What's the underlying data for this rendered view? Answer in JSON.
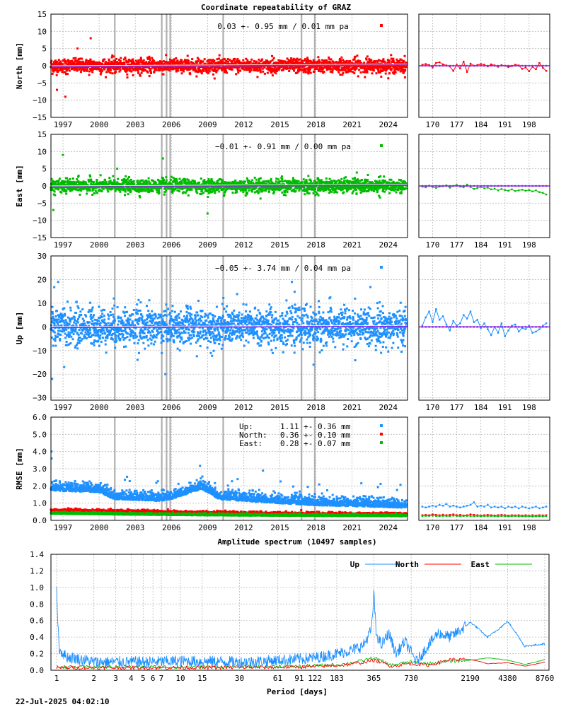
{
  "title": "Coordinate repeatability of GRAZ",
  "spectrum_title": "Amplitude spectrum (10497 samples)",
  "timestamp": "22-Jul-2025 04:02:10",
  "colors": {
    "north": "#ff0000",
    "east": "#00bb00",
    "up": "#1e90ff",
    "trend": "#8a2be2"
  },
  "chart_data": [
    {
      "type": "scatter",
      "name": "north-timeseries",
      "ylabel": "North [mm]",
      "ylim": [
        -15,
        15
      ],
      "yticks": [
        "15",
        "10",
        "5",
        "0",
        "−5",
        "−10",
        "−15"
      ],
      "ytick_values": [
        15,
        10,
        5,
        0,
        -5,
        -10,
        -15
      ],
      "xlim": [
        1996.0,
        2025.6
      ],
      "xticks": [
        "1997",
        "2000",
        "2003",
        "2006",
        "2009",
        "2012",
        "2015",
        "2018",
        "2021",
        "2024"
      ],
      "xtick_values": [
        1997,
        2000,
        2003,
        2006,
        2009,
        2012,
        2015,
        2018,
        2021,
        2024
      ],
      "annotation": "0.03 +- 0.95 mm /  0.01 mm pa",
      "noise_sd": 1.0,
      "series_color": "north",
      "outliers": [
        [
          1999.3,
          8
        ],
        [
          1996.5,
          -7
        ],
        [
          1997.2,
          -9
        ],
        [
          1998.2,
          5
        ]
      ],
      "equipment_changes": [
        2001.3,
        2005.2,
        2005.6,
        2005.9,
        2010.3,
        2016.8,
        2017.9
      ],
      "recent": {
        "xticks": [
          "170",
          "177",
          "184",
          "191",
          "198"
        ],
        "xtick_values": [
          170,
          177,
          184,
          191,
          198
        ],
        "xlim": [
          166,
          204
        ],
        "values": [
          0.3,
          0.5,
          0.2,
          -0.5,
          0.8,
          1.0,
          0.4,
          0.1,
          -0.2,
          -1.5,
          0.3,
          -0.8,
          1.2,
          -1.8,
          0.6,
          0.0,
          0.2,
          0.5,
          0.3,
          -0.2,
          0.4,
          0.1,
          -0.3,
          0.2,
          0.0,
          -0.4,
          -0.1,
          0.3,
          0.1,
          -0.9,
          -0.5,
          -1.6,
          -0.3,
          -1.0,
          0.8,
          -0.6,
          -1.5
        ]
      }
    },
    {
      "type": "scatter",
      "name": "east-timeseries",
      "ylabel": "East [mm]",
      "ylim": [
        -15,
        15
      ],
      "yticks": [
        "15",
        "10",
        "5",
        "0",
        "−5",
        "−10",
        "−15"
      ],
      "ytick_values": [
        15,
        10,
        5,
        0,
        -5,
        -10,
        -15
      ],
      "xlim": [
        1996.0,
        2025.6
      ],
      "xticks": [
        "1997",
        "2000",
        "2003",
        "2006",
        "2009",
        "2012",
        "2015",
        "2018",
        "2021",
        "2024"
      ],
      "xtick_values": [
        1997,
        2000,
        2003,
        2006,
        2009,
        2012,
        2015,
        2018,
        2021,
        2024
      ],
      "annotation": "−0.01 +- 0.91 mm /  0.00 mm pa",
      "noise_sd": 0.95,
      "series_color": "east",
      "outliers": [
        [
          1997.0,
          9
        ],
        [
          2005.3,
          8
        ],
        [
          2009.0,
          -8
        ],
        [
          1996.2,
          -7
        ],
        [
          2001.5,
          5
        ]
      ],
      "equipment_changes": [
        2001.3,
        2005.2,
        2005.6,
        2005.9,
        2010.3,
        2016.8,
        2017.9
      ],
      "recent": {
        "xticks": [
          "170",
          "177",
          "184",
          "191",
          "198"
        ],
        "xtick_values": [
          170,
          177,
          184,
          191,
          198
        ],
        "xlim": [
          166,
          204
        ],
        "values": [
          -0.2,
          -0.4,
          0.1,
          -0.3,
          -0.6,
          -0.2,
          -0.1,
          0.2,
          -0.5,
          0.0,
          0.3,
          -0.2,
          -0.4,
          0.4,
          -0.3,
          -0.9,
          -0.6,
          -0.3,
          -0.7,
          -0.5,
          -1.0,
          -0.8,
          -1.3,
          -0.9,
          -1.2,
          -1.4,
          -1.0,
          -1.5,
          -1.3,
          -1.1,
          -1.4,
          -1.2,
          -1.6,
          -1.3,
          -1.8,
          -2.0,
          -2.5
        ]
      }
    },
    {
      "type": "scatter",
      "name": "up-timeseries",
      "ylabel": "Up [mm]",
      "ylim": [
        -31,
        30
      ],
      "yticks": [
        "30",
        "20",
        "10",
        "0",
        "−10",
        "−20",
        "−30"
      ],
      "ytick_values": [
        30,
        20,
        10,
        0,
        -10,
        -20,
        -30
      ],
      "xlim": [
        1996.0,
        2025.6
      ],
      "xticks": [
        "1997",
        "2000",
        "2003",
        "2006",
        "2009",
        "2012",
        "2015",
        "2018",
        "2021",
        "2024"
      ],
      "xtick_values": [
        1997,
        2000,
        2003,
        2006,
        2009,
        2012,
        2015,
        2018,
        2021,
        2024
      ],
      "annotation": "−0.05 +- 3.74 mm /  0.04 mm pa",
      "noise_sd": 3.9,
      "series_color": "up",
      "outliers": [
        [
          1996.1,
          -22
        ],
        [
          1997.1,
          -17
        ],
        [
          1996.6,
          19
        ],
        [
          2005.5,
          -20
        ],
        [
          2016.0,
          19
        ],
        [
          2017.8,
          -16
        ]
      ],
      "equipment_changes": [
        2001.3,
        2005.2,
        2005.6,
        2005.9,
        2010.3,
        2016.8,
        2017.9
      ],
      "recent": {
        "xticks": [
          "170",
          "177",
          "184",
          "191",
          "198"
        ],
        "xtick_values": [
          170,
          177,
          184,
          191,
          198
        ],
        "xlim": [
          166,
          204
        ],
        "values": [
          0.5,
          4.0,
          6.5,
          2.0,
          7.5,
          3.0,
          4.5,
          1.0,
          -1.5,
          2.5,
          0.5,
          1.5,
          5.0,
          3.5,
          6.5,
          2.0,
          3.0,
          -0.5,
          1.5,
          -1.0,
          -3.5,
          0.0,
          -2.5,
          1.5,
          -4.0,
          -1.5,
          0.5,
          1.0,
          -2.0,
          -0.5,
          -1.0,
          0.5,
          -2.5,
          -2.0,
          -1.0,
          0.5,
          1.5
        ]
      }
    },
    {
      "type": "scatter",
      "name": "rmse-timeseries",
      "ylabel": "RMSE [mm]",
      "ylim": [
        0,
        6
      ],
      "yticks": [
        "6.0",
        "5.0",
        "4.0",
        "3.0",
        "2.0",
        "1.0",
        "0.0"
      ],
      "ytick_values": [
        6,
        5,
        4,
        3,
        2,
        1,
        0
      ],
      "xlim": [
        1996.0,
        2025.6
      ],
      "xticks": [
        "1997",
        "2000",
        "2003",
        "2006",
        "2009",
        "2012",
        "2015",
        "2018",
        "2021",
        "2024"
      ],
      "xtick_values": [
        1997,
        2000,
        2003,
        2006,
        2009,
        2012,
        2015,
        2018,
        2021,
        2024
      ],
      "equipment_changes": [
        2001.3,
        2005.2,
        2005.6,
        2005.9,
        2010.3,
        2016.8,
        2017.9
      ],
      "legend": [
        {
          "label": "Up:",
          "value": "1.11 +- 0.36 mm",
          "color": "up"
        },
        {
          "label": "North:",
          "value": "0.36 +- 0.10 mm",
          "color": "north"
        },
        {
          "label": "East:",
          "value": "0.28 +- 0.07 mm",
          "color": "east"
        }
      ],
      "levels": [
        {
          "series": "up",
          "points": [
            [
              1996.0,
              1.8
            ],
            [
              2000.0,
              1.7
            ],
            [
              2001.3,
              1.3
            ],
            [
              2005.0,
              1.2
            ],
            [
              2006.0,
              1.3
            ],
            [
              2008.5,
              1.9
            ],
            [
              2010.0,
              1.3
            ],
            [
              2014.0,
              1.1
            ],
            [
              2018.0,
              0.95
            ],
            [
              2025.6,
              0.8
            ]
          ],
          "spread": 0.25
        },
        {
          "series": "north",
          "points": [
            [
              1996.0,
              0.55
            ],
            [
              2002.0,
              0.5
            ],
            [
              2010.0,
              0.4
            ],
            [
              2018.0,
              0.35
            ],
            [
              2025.6,
              0.32
            ]
          ],
          "spread": 0.06
        },
        {
          "series": "east",
          "points": [
            [
              1996.0,
              0.4
            ],
            [
              2002.0,
              0.35
            ],
            [
              2010.0,
              0.3
            ],
            [
              2018.0,
              0.27
            ],
            [
              2025.6,
              0.25
            ]
          ],
          "spread": 0.05
        }
      ],
      "recent": {
        "xticks": [
          "170",
          "177",
          "184",
          "191",
          "198"
        ],
        "xtick_values": [
          170,
          177,
          184,
          191,
          198
        ],
        "xlim": [
          166,
          204
        ],
        "up": [
          0.8,
          0.75,
          0.8,
          0.85,
          0.8,
          0.9,
          0.85,
          0.95,
          0.8,
          0.85,
          0.8,
          0.75,
          0.8,
          0.85,
          0.9,
          1.05,
          0.8,
          0.85,
          0.8,
          0.9,
          0.75,
          0.8,
          0.75,
          0.8,
          0.7,
          0.8,
          0.75,
          0.8,
          0.7,
          0.8,
          0.75,
          0.7,
          0.75,
          0.8,
          0.7,
          0.75,
          0.8
        ],
        "north": [
          0.3,
          0.32,
          0.3,
          0.35,
          0.32,
          0.3,
          0.33,
          0.3,
          0.32,
          0.35,
          0.3,
          0.32,
          0.28,
          0.3,
          0.35,
          0.32,
          0.3,
          0.28,
          0.3,
          0.32,
          0.3,
          0.28,
          0.3,
          0.32,
          0.3,
          0.28,
          0.3,
          0.29,
          0.3,
          0.28,
          0.3,
          0.27,
          0.3,
          0.28,
          0.3,
          0.29,
          0.3
        ],
        "east": [
          0.25,
          0.26,
          0.25,
          0.27,
          0.25,
          0.24,
          0.26,
          0.25,
          0.24,
          0.27,
          0.25,
          0.24,
          0.25,
          0.26,
          0.25,
          0.24,
          0.25,
          0.23,
          0.25,
          0.24,
          0.25,
          0.24,
          0.23,
          0.25,
          0.24,
          0.23,
          0.24,
          0.25,
          0.23,
          0.24,
          0.23,
          0.24,
          0.22,
          0.23,
          0.24,
          0.23,
          0.24
        ]
      }
    },
    {
      "type": "line",
      "name": "amplitude-spectrum",
      "title": "Amplitude spectrum (10497 samples)",
      "xlabel": "Period [days]",
      "ylim": [
        0,
        1.4
      ],
      "xscale": "log",
      "xlim": [
        1,
        8760
      ],
      "yticks": [
        "1.4",
        "1.2",
        "1.0",
        "0.8",
        "0.6",
        "0.4",
        "0.2",
        "0.0"
      ],
      "ytick_values": [
        1.4,
        1.2,
        1.0,
        0.8,
        0.6,
        0.4,
        0.2,
        0.0
      ],
      "xticks": [
        "1",
        "2",
        "3",
        "4",
        "5",
        "6",
        "7",
        "10",
        "15",
        "30",
        "61",
        "91",
        "122",
        "183",
        "365",
        "730",
        "2190",
        "4380",
        "8760"
      ],
      "xtick_values": [
        1,
        2,
        3,
        4,
        5,
        6,
        7,
        10,
        15,
        30,
        61,
        91,
        122,
        183,
        365,
        730,
        2190,
        4380,
        8760
      ],
      "series": [
        {
          "name": "Up",
          "color": "up",
          "points": [
            [
              1.0,
              0.94
            ],
            [
              1.05,
              0.25
            ],
            [
              1.2,
              0.16
            ],
            [
              2,
              0.1
            ],
            [
              5,
              0.1
            ],
            [
              10,
              0.11
            ],
            [
              30,
              0.1
            ],
            [
              61,
              0.12
            ],
            [
              120,
              0.15
            ],
            [
              183,
              0.2
            ],
            [
              250,
              0.25
            ],
            [
              300,
              0.3
            ],
            [
              350,
              0.5
            ],
            [
              365,
              0.93
            ],
            [
              380,
              0.45
            ],
            [
              420,
              0.3
            ],
            [
              480,
              0.45
            ],
            [
              550,
              0.2
            ],
            [
              650,
              0.35
            ],
            [
              800,
              0.1
            ],
            [
              1000,
              0.3
            ],
            [
              1200,
              0.45
            ],
            [
              1500,
              0.4
            ],
            [
              2190,
              0.58
            ],
            [
              3000,
              0.4
            ],
            [
              4380,
              0.59
            ],
            [
              6000,
              0.29
            ],
            [
              8760,
              0.32
            ]
          ],
          "spread": 0.07
        },
        {
          "name": "North",
          "color": "north",
          "points": [
            [
              1,
              0.03
            ],
            [
              10,
              0.03
            ],
            [
              100,
              0.04
            ],
            [
              200,
              0.06
            ],
            [
              365,
              0.12
            ],
            [
              500,
              0.05
            ],
            [
              700,
              0.08
            ],
            [
              1000,
              0.06
            ],
            [
              1500,
              0.13
            ],
            [
              2190,
              0.13
            ],
            [
              3000,
              0.08
            ],
            [
              4380,
              0.09
            ],
            [
              6000,
              0.05
            ],
            [
              8760,
              0.1
            ]
          ],
          "spread": 0.02
        },
        {
          "name": "East",
          "color": "east",
          "points": [
            [
              1,
              0.04
            ],
            [
              10,
              0.04
            ],
            [
              100,
              0.05
            ],
            [
              200,
              0.07
            ],
            [
              365,
              0.15
            ],
            [
              500,
              0.06
            ],
            [
              700,
              0.1
            ],
            [
              1000,
              0.08
            ],
            [
              1500,
              0.11
            ],
            [
              2190,
              0.12
            ],
            [
              3000,
              0.15
            ],
            [
              4380,
              0.12
            ],
            [
              6000,
              0.07
            ],
            [
              8760,
              0.13
            ]
          ],
          "spread": 0.02
        }
      ]
    }
  ]
}
